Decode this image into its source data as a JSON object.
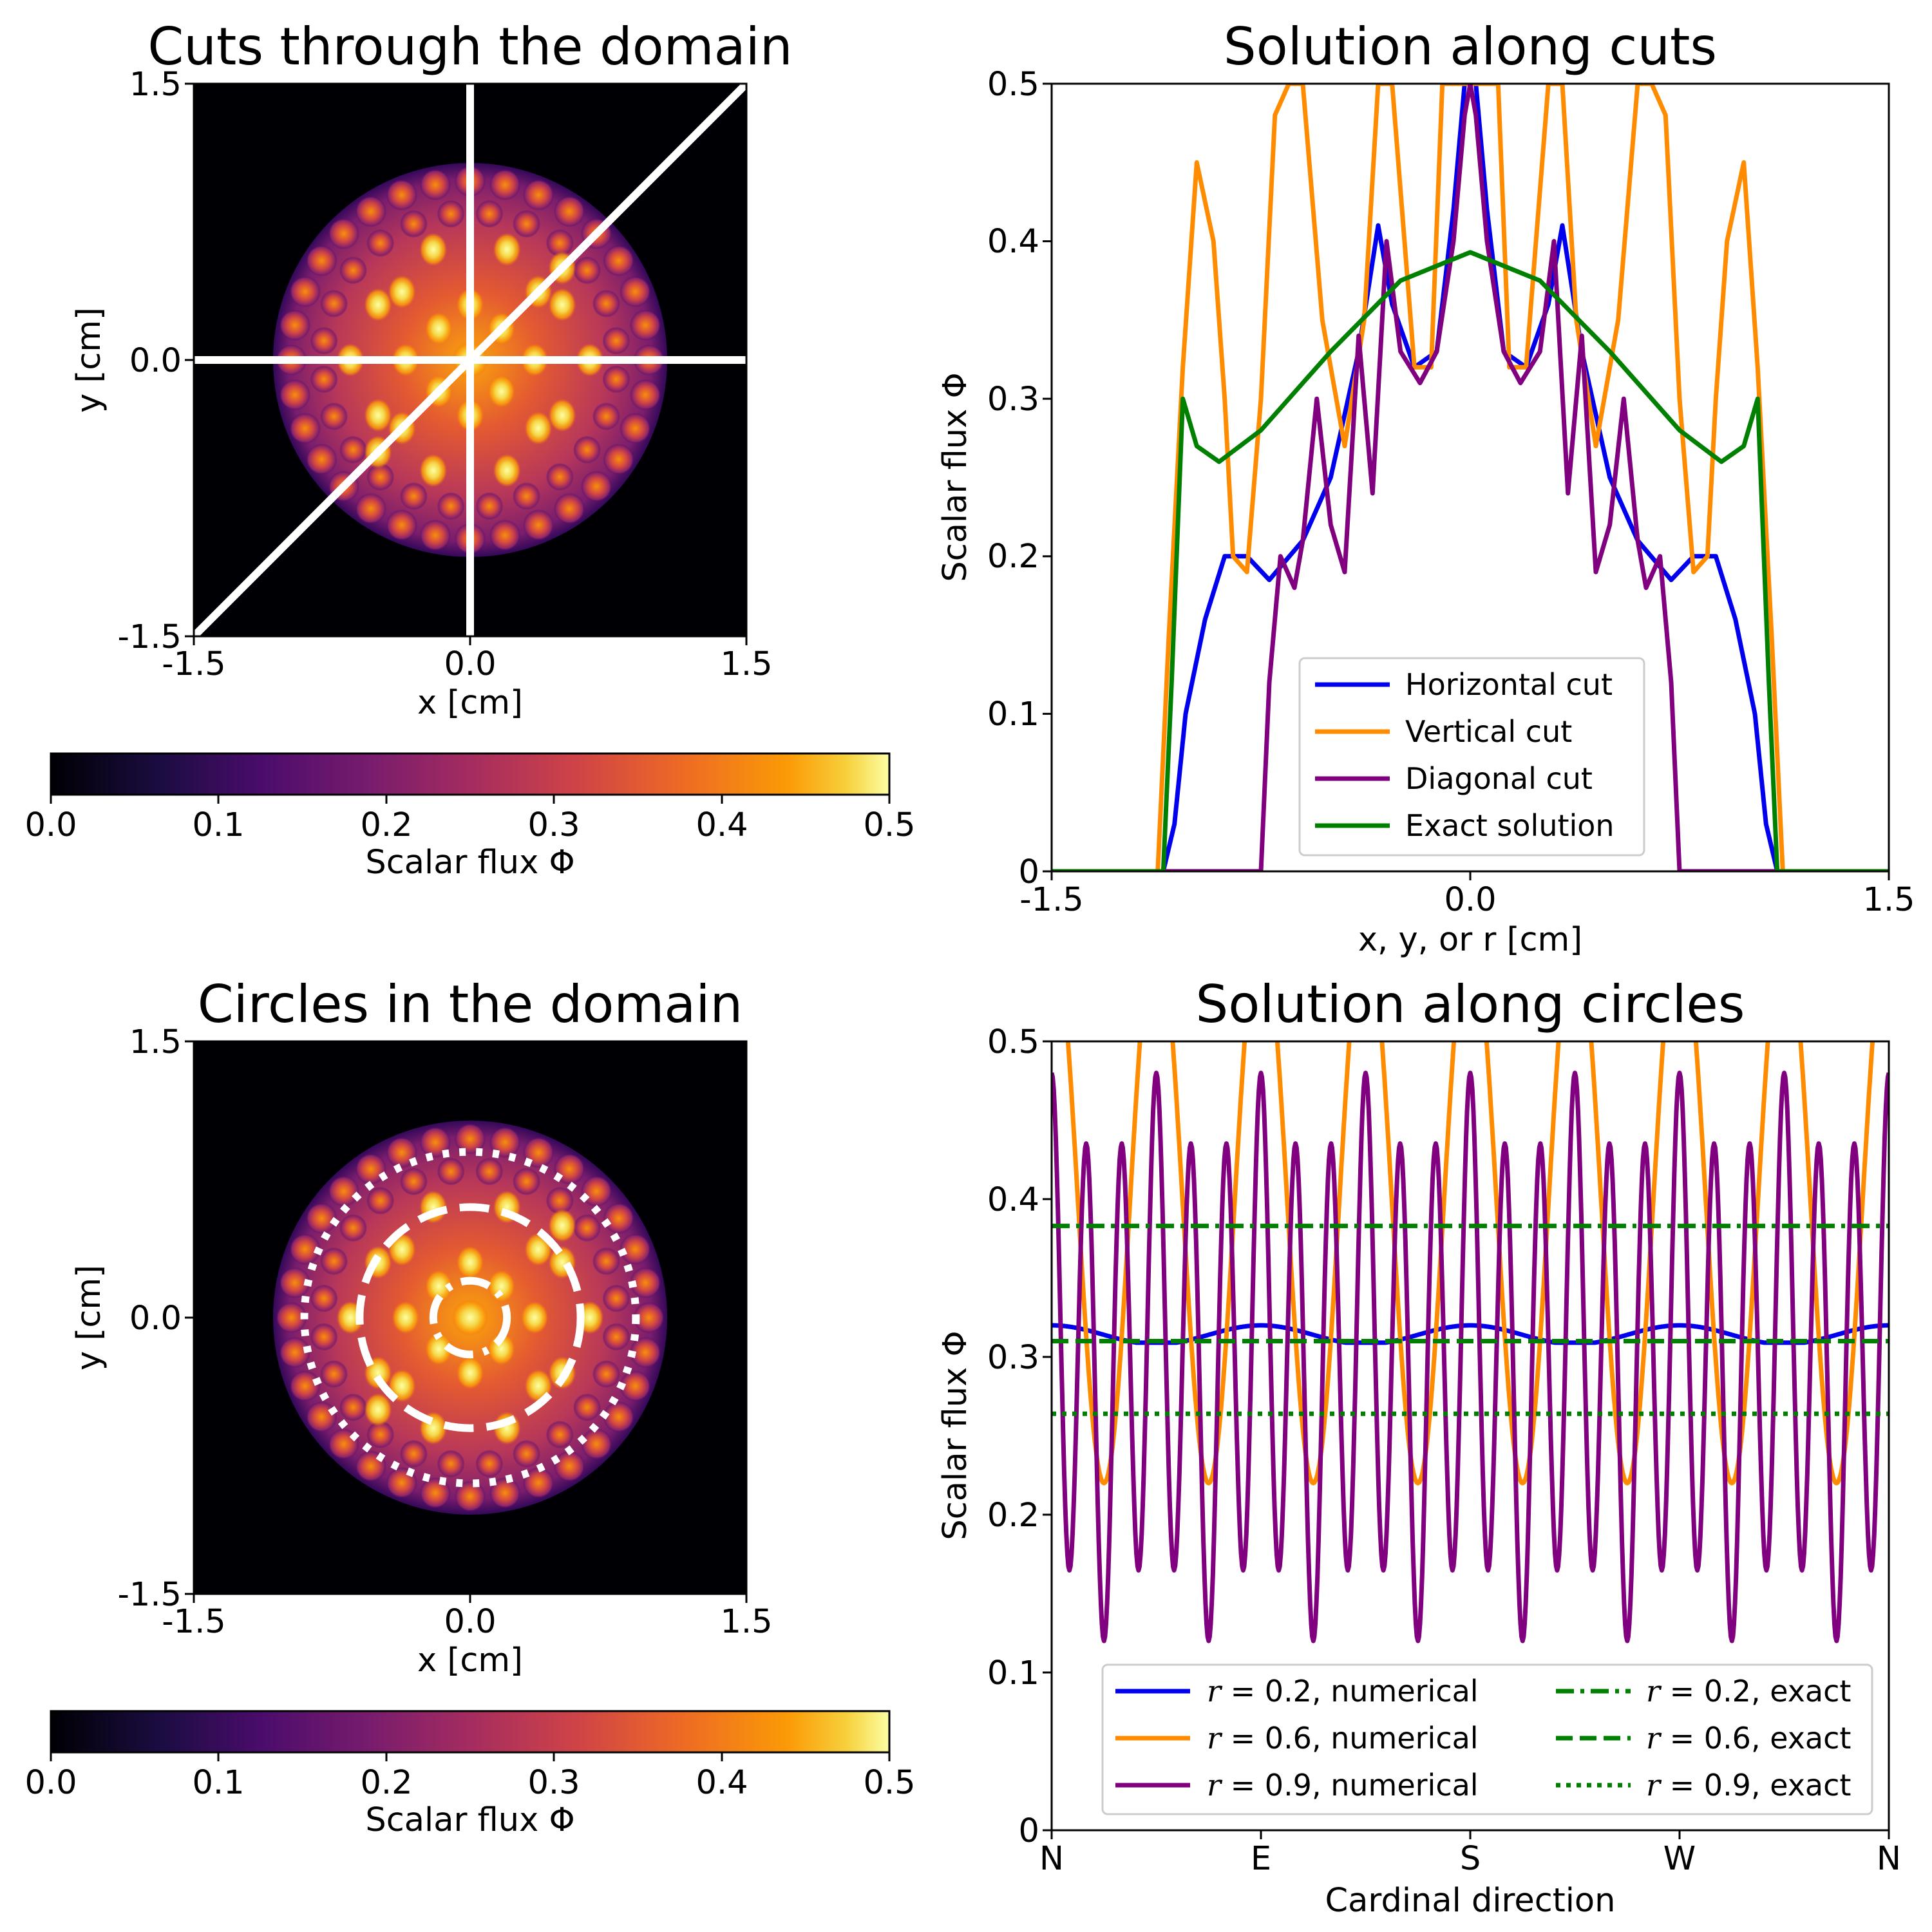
{
  "chart_data": [
    {
      "type": "heatmap",
      "title": "Cuts through the domain",
      "xlabel": "x [cm]",
      "ylabel": "y [cm]",
      "xlim": [
        -1.5,
        1.5
      ],
      "ylim": [
        -1.5,
        1.5
      ],
      "xticks": [
        "-1.5",
        "0.0",
        "1.5"
      ],
      "yticks": [
        "-1.5",
        "0.0",
        "1.5"
      ],
      "overlays": [
        "horizontal cut y=0",
        "vertical cut x=0",
        "diagonal cut y=x"
      ],
      "colorbar": {
        "label": "Scalar flux Φ",
        "range": [
          0.0,
          0.5
        ],
        "ticks": [
          "0.0",
          "0.1",
          "0.2",
          "0.3",
          "0.4",
          "0.5"
        ],
        "colormap": "inferno"
      }
    },
    {
      "type": "line",
      "title": "Solution along cuts",
      "xlabel": "x, y, or r [cm]",
      "ylabel": "Scalar flux Φ",
      "xlim": [
        -1.5,
        1.5
      ],
      "ylim": [
        0,
        0.5
      ],
      "xticks": [
        "-1.5",
        "0.0",
        "1.5"
      ],
      "yticks": [
        "0",
        "0.1",
        "0.2",
        "0.3",
        "0.4",
        "0.5"
      ],
      "legend_position": "lower center",
      "series": [
        {
          "name": "Horizontal cut",
          "color": "#0000ee",
          "x": [
            -1.5,
            -1.1,
            -1.06,
            -1.02,
            -0.95,
            -0.88,
            -0.8,
            -0.72,
            -0.6,
            -0.5,
            -0.4,
            -0.33,
            -0.28,
            -0.2,
            -0.12,
            -0.06,
            -0.02,
            0.0,
            0.02,
            0.06,
            0.12,
            0.2,
            0.28,
            0.33,
            0.4,
            0.5,
            0.6,
            0.72,
            0.8,
            0.88,
            0.95,
            1.02,
            1.06,
            1.1,
            1.5
          ],
          "y": [
            0,
            0,
            0.03,
            0.1,
            0.16,
            0.2,
            0.2,
            0.185,
            0.21,
            0.25,
            0.33,
            0.41,
            0.36,
            0.32,
            0.33,
            0.42,
            0.5,
            0.5,
            0.5,
            0.42,
            0.33,
            0.32,
            0.36,
            0.41,
            0.33,
            0.25,
            0.21,
            0.185,
            0.2,
            0.2,
            0.16,
            0.1,
            0.03,
            0,
            0
          ]
        },
        {
          "name": "Vertical cut",
          "color": "#ff8c00",
          "x": [
            -1.5,
            -1.12,
            -1.08,
            -1.03,
            -0.98,
            -0.92,
            -0.88,
            -0.85,
            -0.8,
            -0.75,
            -0.7,
            -0.65,
            -0.6,
            -0.53,
            -0.45,
            -0.38,
            -0.33,
            -0.28,
            -0.2,
            -0.14,
            -0.1,
            -0.05,
            0.0,
            0.05,
            0.1,
            0.14,
            0.2,
            0.28,
            0.33,
            0.38,
            0.45,
            0.53,
            0.6,
            0.65,
            0.7,
            0.75,
            0.8,
            0.85,
            0.88,
            0.92,
            0.98,
            1.03,
            1.08,
            1.12,
            1.5
          ],
          "y": [
            0,
            0,
            0.15,
            0.32,
            0.45,
            0.4,
            0.3,
            0.2,
            0.19,
            0.3,
            0.48,
            0.5,
            0.5,
            0.35,
            0.27,
            0.35,
            0.5,
            0.5,
            0.32,
            0.32,
            0.5,
            0.5,
            0.5,
            0.5,
            0.5,
            0.32,
            0.32,
            0.5,
            0.5,
            0.35,
            0.27,
            0.35,
            0.5,
            0.5,
            0.48,
            0.3,
            0.19,
            0.2,
            0.3,
            0.4,
            0.45,
            0.32,
            0.15,
            0,
            0
          ]
        },
        {
          "name": "Diagonal cut",
          "color": "#800080",
          "x": [
            -1.5,
            -0.75,
            -0.72,
            -0.68,
            -0.63,
            -0.6,
            -0.55,
            -0.5,
            -0.45,
            -0.4,
            -0.35,
            -0.3,
            -0.25,
            -0.18,
            -0.12,
            -0.06,
            -0.02,
            0.0,
            0.02,
            0.06,
            0.12,
            0.18,
            0.25,
            0.3,
            0.35,
            0.4,
            0.45,
            0.5,
            0.55,
            0.6,
            0.63,
            0.68,
            0.72,
            0.75,
            1.5
          ],
          "y": [
            0,
            0,
            0.12,
            0.2,
            0.18,
            0.21,
            0.3,
            0.22,
            0.19,
            0.34,
            0.24,
            0.4,
            0.33,
            0.31,
            0.33,
            0.4,
            0.48,
            0.5,
            0.48,
            0.4,
            0.33,
            0.31,
            0.33,
            0.4,
            0.24,
            0.34,
            0.19,
            0.22,
            0.3,
            0.21,
            0.18,
            0.2,
            0.12,
            0,
            0
          ]
        },
        {
          "name": "Exact solution",
          "color": "#008000",
          "x": [
            -1.5,
            -1.1,
            -1.07,
            -1.03,
            -0.98,
            -0.9,
            -0.75,
            -0.5,
            -0.25,
            0.0,
            0.25,
            0.5,
            0.75,
            0.9,
            0.98,
            1.03,
            1.07,
            1.1,
            1.5
          ],
          "y": [
            0,
            0,
            0.12,
            0.3,
            0.27,
            0.26,
            0.28,
            0.33,
            0.375,
            0.393,
            0.375,
            0.33,
            0.28,
            0.26,
            0.27,
            0.3,
            0.12,
            0,
            0
          ]
        }
      ]
    },
    {
      "type": "heatmap",
      "title": "Circles in the domain",
      "xlabel": "x [cm]",
      "ylabel": "y [cm]",
      "xlim": [
        -1.5,
        1.5
      ],
      "ylim": [
        -1.5,
        1.5
      ],
      "xticks": [
        "-1.5",
        "0.0",
        "1.5"
      ],
      "yticks": [
        "-1.5",
        "0.0",
        "1.5"
      ],
      "circles": [
        {
          "r": 0.2,
          "style": "dashdot"
        },
        {
          "r": 0.6,
          "style": "dashed"
        },
        {
          "r": 0.9,
          "style": "dotted"
        }
      ],
      "colorbar": {
        "label": "Scalar flux Φ",
        "range": [
          0.0,
          0.5
        ],
        "ticks": [
          "0.0",
          "0.1",
          "0.2",
          "0.3",
          "0.4",
          "0.5"
        ],
        "colormap": "inferno"
      }
    },
    {
      "type": "line",
      "title": "Solution along circles",
      "xlabel": "Cardinal direction",
      "ylabel": "Scalar flux Φ",
      "ylim": [
        0,
        0.5
      ],
      "xticks": [
        "N",
        "E",
        "S",
        "W",
        "N"
      ],
      "yticks": [
        "0",
        "0.1",
        "0.2",
        "0.3",
        "0.4",
        "0.5"
      ],
      "legend_position": "lower center",
      "series": [
        {
          "name": "r = 0.2, numerical",
          "r": "0.2",
          "kind": "numerical",
          "color": "#0000ee",
          "style": "solid",
          "mean": 0.314,
          "amplitude": 0.006,
          "periods": 4,
          "min": 0.309,
          "max": 0.325
        },
        {
          "name": "r = 0.6, numerical",
          "r": "0.6",
          "kind": "numerical",
          "color": "#ff8c00",
          "style": "solid",
          "mean": 0.4,
          "amplitude": 0.18,
          "periods": 8,
          "min": 0.215,
          "max": 0.5
        },
        {
          "name": "r = 0.9, numerical",
          "r": "0.9",
          "kind": "numerical",
          "color": "#800080",
          "style": "solid",
          "mean": 0.3,
          "amplitude": 0.15,
          "periods": 24,
          "min": 0.12,
          "max": 0.46
        },
        {
          "name": "r = 0.2, exact",
          "r": "0.2",
          "kind": "exact",
          "color": "#008000",
          "style": "dashdot",
          "value": 0.383
        },
        {
          "name": "r = 0.6, exact",
          "r": "0.6",
          "kind": "exact",
          "color": "#008000",
          "style": "dashed",
          "value": 0.31
        },
        {
          "name": "r = 0.9, exact",
          "r": "0.9",
          "kind": "exact",
          "color": "#008000",
          "style": "dotted",
          "value": 0.264
        }
      ]
    }
  ]
}
